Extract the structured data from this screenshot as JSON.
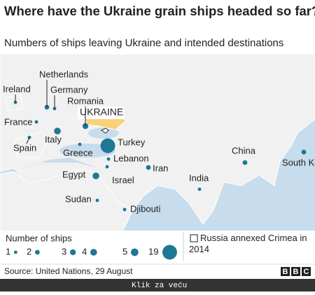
{
  "header": {
    "title": "Where have the Ukraine grain ships headed so far?",
    "subtitle": "Numbers of ships leaving Ukraine and intended destinations"
  },
  "map": {
    "highlight": "UKRAINE",
    "destinations": [
      {
        "name": "Ireland",
        "ships": 1
      },
      {
        "name": "Netherlands",
        "ships": 2
      },
      {
        "name": "Germany",
        "ships": 1
      },
      {
        "name": "Romania",
        "ships": 3
      },
      {
        "name": "France",
        "ships": 1
      },
      {
        "name": "Spain",
        "ships": 1
      },
      {
        "name": "Italy",
        "ships": 4
      },
      {
        "name": "Greece",
        "ships": 1
      },
      {
        "name": "Turkey",
        "ships": 19
      },
      {
        "name": "Lebanon",
        "ships": 1
      },
      {
        "name": "Israel",
        "ships": 1
      },
      {
        "name": "Egypt",
        "ships": 4
      },
      {
        "name": "Iran",
        "ships": 2
      },
      {
        "name": "Sudan",
        "ships": 1
      },
      {
        "name": "Djibouti",
        "ships": 1
      },
      {
        "name": "India",
        "ships": 1
      },
      {
        "name": "China",
        "ships": 2
      },
      {
        "name": "South Korea",
        "ships": 2
      }
    ]
  },
  "legend": {
    "title": "Number of ships",
    "sizes": [
      1,
      2,
      3,
      4,
      5,
      19
    ],
    "crimea": "Russia annexed Crimea in 2014"
  },
  "footer": {
    "source": "Source: United Nations, 29 August",
    "logo": [
      "B",
      "B",
      "C"
    ],
    "link": "Klik za veću"
  }
}
